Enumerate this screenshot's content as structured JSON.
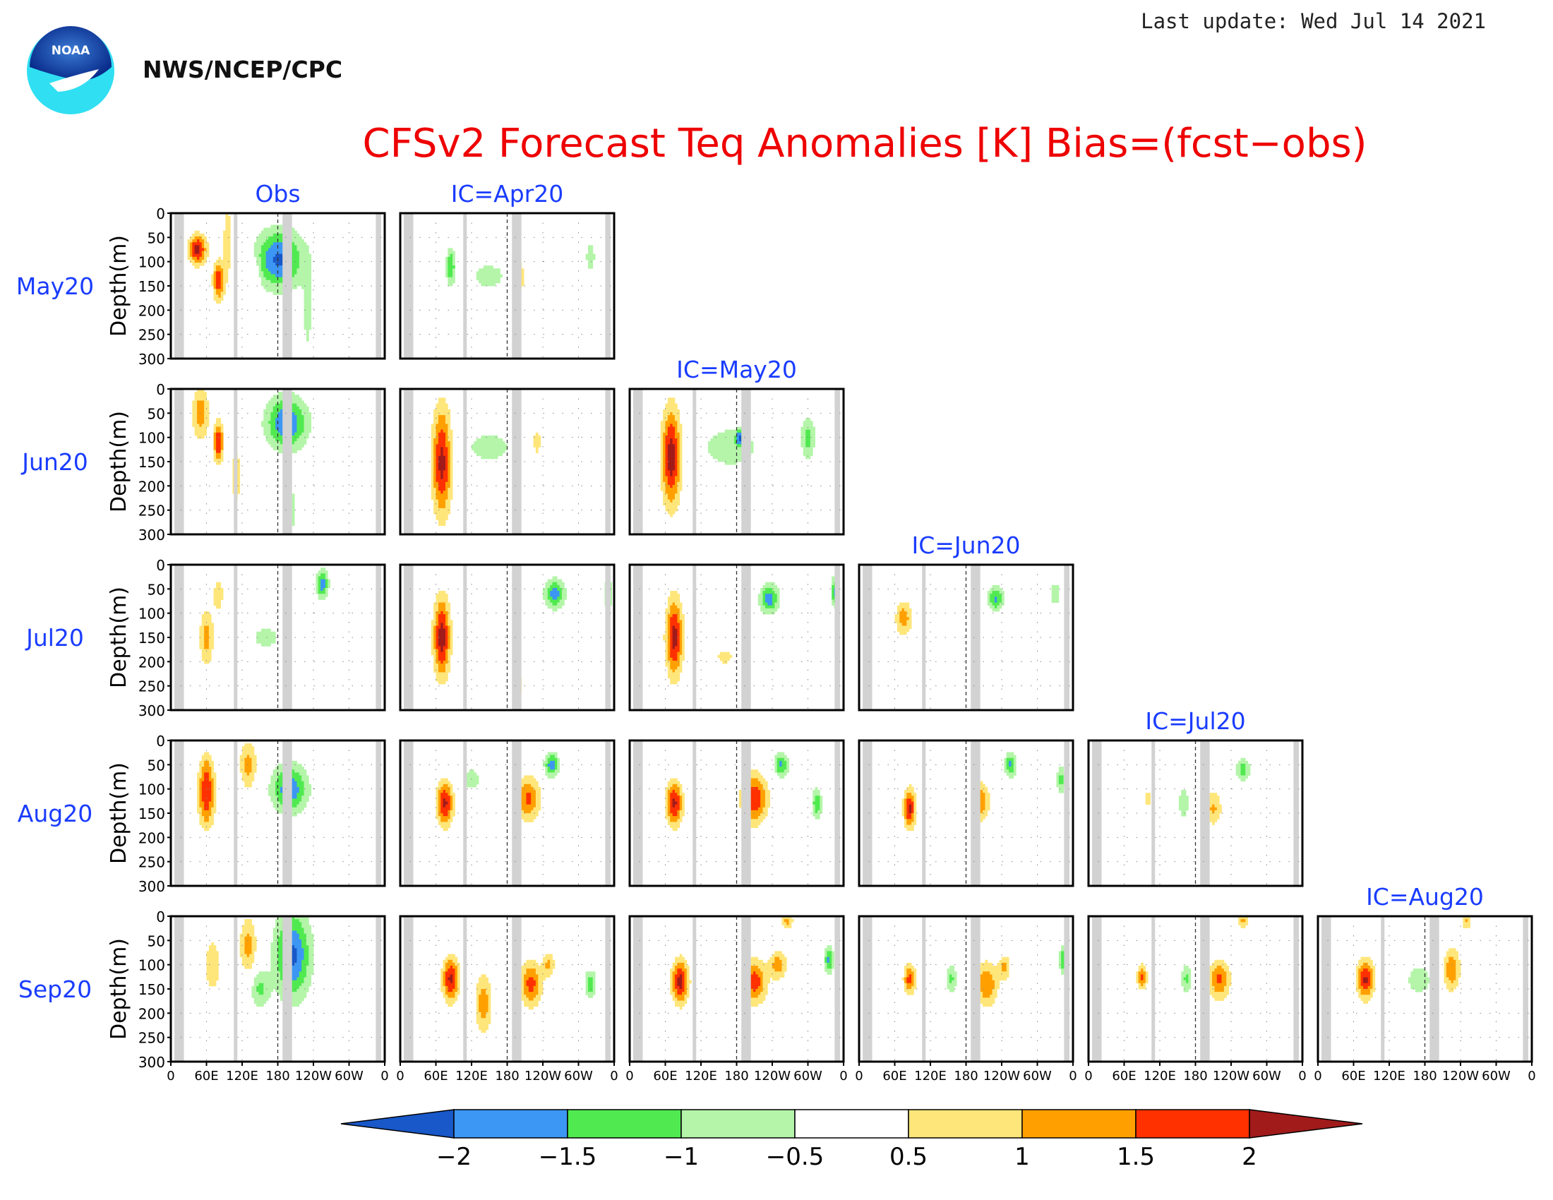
{
  "header": {
    "last_update": "Last update: Wed Jul 14 2021",
    "org": "NWS/NCEP/CPC",
    "logo_text": "NOAA"
  },
  "title": "CFSv2 Forecast Teq Anomalies [K] Bias=(fcst−obs)",
  "colors": {
    "title": "#ee0000",
    "label": "#1a3cff",
    "land": "#d2d2d2"
  },
  "chart_data": {
    "type": "heatmap",
    "y_label": "Depth(m)",
    "y_ticks": [
      "0",
      "50",
      "100",
      "150",
      "200",
      "250",
      "300"
    ],
    "ylim": [
      0,
      300
    ],
    "x_ticks": [
      "0",
      "60E",
      "120E",
      "180",
      "120W",
      "60W",
      "0"
    ],
    "xlim": [
      0,
      360
    ],
    "column_headers": [
      "Obs",
      "IC=Apr20",
      "IC=May20",
      "IC=Jun20",
      "IC=Jul20",
      "IC=Aug20"
    ],
    "row_labels": [
      "May20",
      "Jun20",
      "Jul20",
      "Aug20",
      "Sep20"
    ],
    "colorbar": {
      "tick_labels": [
        "−2",
        "−1.5",
        "−1",
        "−0.5",
        "0.5",
        "1",
        "1.5",
        "2"
      ],
      "bins": [
        "#1858c8",
        "#3c96f4",
        "#50ea50",
        "#b4f5a9",
        "#ffffff",
        "#ffe67a",
        "#ffa000",
        "#ff3100",
        "#a11b1b"
      ]
    },
    "land_bands_lon": [
      [
        6,
        22
      ],
      [
        106,
        112
      ],
      [
        188,
        204
      ],
      [
        345,
        354
      ]
    ],
    "note_levels": "panel values are anomaly bias in K, binned by colorbar",
    "panels": [
      {
        "row": 0,
        "col": 0,
        "blobs": [
          {
            "lon": 45,
            "depth": 75,
            "rlon": 15,
            "rdep": 30,
            "v": 2.2
          },
          {
            "lon": 80,
            "depth": 140,
            "rlon": 9,
            "rdep": 40,
            "v": 1.9
          },
          {
            "lon": 95,
            "depth": 60,
            "rlon": 8,
            "rdep": 90,
            "v": 0.8
          },
          {
            "lon": 182,
            "depth": 95,
            "rlon": 40,
            "rdep": 60,
            "v": -2.1
          },
          {
            "lon": 230,
            "depth": 200,
            "rlon": 8,
            "rdep": 90,
            "v": -0.8
          },
          {
            "lon": 140,
            "depth": 130,
            "rlon": 10,
            "rdep": 40,
            "v": 0.7
          }
        ]
      },
      {
        "row": 0,
        "col": 1,
        "blobs": [
          {
            "lon": 85,
            "depth": 110,
            "rlon": 8,
            "rdep": 40,
            "v": -1.4
          },
          {
            "lon": 150,
            "depth": 130,
            "rlon": 40,
            "rdep": 35,
            "v": -0.7
          },
          {
            "lon": 200,
            "depth": 130,
            "rlon": 18,
            "rdep": 60,
            "v": 0.7
          },
          {
            "lon": 320,
            "depth": 90,
            "rlon": 8,
            "rdep": 35,
            "v": -0.9
          }
        ]
      },
      {
        "row": 1,
        "col": 0,
        "blobs": [
          {
            "lon": 50,
            "depth": 50,
            "rlon": 14,
            "rdep": 55,
            "v": 1.3
          },
          {
            "lon": 80,
            "depth": 110,
            "rlon": 8,
            "rdep": 40,
            "v": 2.1
          },
          {
            "lon": 195,
            "depth": 70,
            "rlon": 35,
            "rdep": 55,
            "v": -2.0
          },
          {
            "lon": 205,
            "depth": 250,
            "rlon": 6,
            "rdep": 50,
            "v": -0.8
          },
          {
            "lon": 110,
            "depth": 180,
            "rlon": 12,
            "rdep": 80,
            "v": 0.7
          }
        ]
      },
      {
        "row": 1,
        "col": 1,
        "blobs": [
          {
            "lon": 70,
            "depth": 150,
            "rlon": 16,
            "rdep": 110,
            "v": 2.2
          },
          {
            "lon": 150,
            "depth": 120,
            "rlon": 50,
            "rdep": 40,
            "v": -0.7
          },
          {
            "lon": 230,
            "depth": 110,
            "rlon": 10,
            "rdep": 40,
            "v": 0.7
          }
        ]
      },
      {
        "row": 1,
        "col": 2,
        "blobs": [
          {
            "lon": 70,
            "depth": 140,
            "rlon": 16,
            "rdep": 100,
            "v": 2.3
          },
          {
            "lon": 170,
            "depth": 120,
            "rlon": 50,
            "rdep": 45,
            "v": -0.9
          },
          {
            "lon": 185,
            "depth": 100,
            "rlon": 6,
            "rdep": 15,
            "v": -1.6
          },
          {
            "lon": 300,
            "depth": 100,
            "rlon": 12,
            "rdep": 45,
            "v": -1.2
          }
        ]
      },
      {
        "row": 2,
        "col": 0,
        "blobs": [
          {
            "lon": 60,
            "depth": 150,
            "rlon": 12,
            "rdep": 60,
            "v": 1.2
          },
          {
            "lon": 80,
            "depth": 60,
            "rlon": 10,
            "rdep": 40,
            "v": 0.8
          },
          {
            "lon": 255,
            "depth": 40,
            "rlon": 10,
            "rdep": 30,
            "v": -1.8
          },
          {
            "lon": 160,
            "depth": 150,
            "rlon": 40,
            "rdep": 40,
            "v": -0.6
          }
        ]
      },
      {
        "row": 2,
        "col": 1,
        "blobs": [
          {
            "lon": 70,
            "depth": 150,
            "rlon": 14,
            "rdep": 80,
            "v": 2.3
          },
          {
            "lon": 260,
            "depth": 60,
            "rlon": 18,
            "rdep": 30,
            "v": -1.7
          },
          {
            "lon": 350,
            "depth": 60,
            "rlon": 8,
            "rdep": 30,
            "v": -1.2
          },
          {
            "lon": 200,
            "depth": 250,
            "rlon": 8,
            "rdep": 30,
            "v": 0.7
          }
        ]
      },
      {
        "row": 2,
        "col": 2,
        "blobs": [
          {
            "lon": 75,
            "depth": 150,
            "rlon": 14,
            "rdep": 80,
            "v": 2.2
          },
          {
            "lon": 235,
            "depth": 70,
            "rlon": 16,
            "rdep": 30,
            "v": -1.8
          },
          {
            "lon": 345,
            "depth": 55,
            "rlon": 6,
            "rdep": 30,
            "v": -1.7
          },
          {
            "lon": 160,
            "depth": 190,
            "rlon": 18,
            "rdep": 20,
            "v": 0.7
          }
        ]
      },
      {
        "row": 2,
        "col": 3,
        "blobs": [
          {
            "lon": 75,
            "depth": 110,
            "rlon": 14,
            "rdep": 35,
            "v": 1.3
          },
          {
            "lon": 230,
            "depth": 70,
            "rlon": 14,
            "rdep": 25,
            "v": -1.6
          },
          {
            "lon": 330,
            "depth": 60,
            "rlon": 10,
            "rdep": 30,
            "v": -0.8
          }
        ]
      },
      {
        "row": 3,
        "col": 0,
        "blobs": [
          {
            "lon": 60,
            "depth": 120,
            "rlon": 14,
            "rdep": 60,
            "v": 1.8
          },
          {
            "lon": 130,
            "depth": 50,
            "rlon": 14,
            "rdep": 50,
            "v": 1.2
          },
          {
            "lon": 200,
            "depth": 100,
            "rlon": 30,
            "rdep": 50,
            "v": -1.9
          },
          {
            "lon": 60,
            "depth": 60,
            "rlon": 12,
            "rdep": 40,
            "v": 0.8
          }
        ]
      },
      {
        "row": 3,
        "col": 1,
        "blobs": [
          {
            "lon": 75,
            "depth": 130,
            "rlon": 14,
            "rdep": 45,
            "v": 2.1
          },
          {
            "lon": 215,
            "depth": 120,
            "rlon": 20,
            "rdep": 45,
            "v": 1.6
          },
          {
            "lon": 255,
            "depth": 50,
            "rlon": 12,
            "rdep": 25,
            "v": -1.8
          },
          {
            "lon": 120,
            "depth": 80,
            "rlon": 20,
            "rdep": 30,
            "v": -0.7
          }
        ]
      },
      {
        "row": 3,
        "col": 2,
        "blobs": [
          {
            "lon": 75,
            "depth": 130,
            "rlon": 14,
            "rdep": 45,
            "v": 2.1
          },
          {
            "lon": 210,
            "depth": 120,
            "rlon": 22,
            "rdep": 50,
            "v": 1.9
          },
          {
            "lon": 255,
            "depth": 50,
            "rlon": 12,
            "rdep": 25,
            "v": -1.6
          },
          {
            "lon": 315,
            "depth": 130,
            "rlon": 8,
            "rdep": 30,
            "v": -1.5
          }
        ]
      },
      {
        "row": 3,
        "col": 3,
        "blobs": [
          {
            "lon": 85,
            "depth": 140,
            "rlon": 10,
            "rdep": 40,
            "v": 2.1
          },
          {
            "lon": 205,
            "depth": 125,
            "rlon": 14,
            "rdep": 40,
            "v": 1.4
          },
          {
            "lon": 255,
            "depth": 50,
            "rlon": 10,
            "rdep": 25,
            "v": -1.6
          },
          {
            "lon": 340,
            "depth": 80,
            "rlon": 8,
            "rdep": 30,
            "v": -1.2
          }
        ]
      },
      {
        "row": 3,
        "col": 4,
        "blobs": [
          {
            "lon": 160,
            "depth": 130,
            "rlon": 10,
            "rdep": 35,
            "v": -0.9
          },
          {
            "lon": 210,
            "depth": 140,
            "rlon": 14,
            "rdep": 35,
            "v": 1.1
          },
          {
            "lon": 260,
            "depth": 60,
            "rlon": 12,
            "rdep": 25,
            "v": -1.2
          },
          {
            "lon": 100,
            "depth": 120,
            "rlon": 10,
            "rdep": 20,
            "v": 0.7
          }
        ]
      },
      {
        "row": 4,
        "col": 0,
        "blobs": [
          {
            "lon": 70,
            "depth": 100,
            "rlon": 14,
            "rdep": 60,
            "v": 0.9
          },
          {
            "lon": 130,
            "depth": 60,
            "rlon": 14,
            "rdep": 60,
            "v": 1.2
          },
          {
            "lon": 205,
            "depth": 80,
            "rlon": 30,
            "rdep": 90,
            "v": -2.1
          },
          {
            "lon": 150,
            "depth": 150,
            "rlon": 16,
            "rdep": 40,
            "v": -1.1
          }
        ]
      },
      {
        "row": 4,
        "col": 1,
        "blobs": [
          {
            "lon": 85,
            "depth": 130,
            "rlon": 14,
            "rdep": 45,
            "v": 2.1
          },
          {
            "lon": 140,
            "depth": 180,
            "rlon": 14,
            "rdep": 60,
            "v": 1.3
          },
          {
            "lon": 220,
            "depth": 140,
            "rlon": 18,
            "rdep": 45,
            "v": 1.7
          },
          {
            "lon": 250,
            "depth": 100,
            "rlon": 10,
            "rdep": 25,
            "v": 1.1
          },
          {
            "lon": 320,
            "depth": 140,
            "rlon": 10,
            "rdep": 30,
            "v": -1.3
          }
        ]
      },
      {
        "row": 4,
        "col": 2,
        "blobs": [
          {
            "lon": 85,
            "depth": 135,
            "rlon": 14,
            "rdep": 45,
            "v": 2.2
          },
          {
            "lon": 210,
            "depth": 135,
            "rlon": 20,
            "rdep": 45,
            "v": 1.8
          },
          {
            "lon": 250,
            "depth": 100,
            "rlon": 14,
            "rdep": 30,
            "v": 1.3
          },
          {
            "lon": 265,
            "depth": 10,
            "rlon": 10,
            "rdep": 15,
            "v": 1.2
          },
          {
            "lon": 335,
            "depth": 90,
            "rlon": 8,
            "rdep": 30,
            "v": -1.6
          }
        ]
      },
      {
        "row": 4,
        "col": 3,
        "blobs": [
          {
            "lon": 85,
            "depth": 130,
            "rlon": 10,
            "rdep": 30,
            "v": 1.7
          },
          {
            "lon": 215,
            "depth": 140,
            "rlon": 18,
            "rdep": 45,
            "v": 1.5
          },
          {
            "lon": 245,
            "depth": 105,
            "rlon": 10,
            "rdep": 25,
            "v": 1.1
          },
          {
            "lon": 155,
            "depth": 130,
            "rlon": 10,
            "rdep": 30,
            "v": -1.1
          },
          {
            "lon": 345,
            "depth": 90,
            "rlon": 8,
            "rdep": 30,
            "v": -1.5
          }
        ]
      },
      {
        "row": 4,
        "col": 4,
        "blobs": [
          {
            "lon": 90,
            "depth": 125,
            "rlon": 8,
            "rdep": 25,
            "v": 1.6
          },
          {
            "lon": 165,
            "depth": 130,
            "rlon": 10,
            "rdep": 30,
            "v": -1.1
          },
          {
            "lon": 220,
            "depth": 130,
            "rlon": 18,
            "rdep": 40,
            "v": 1.6
          },
          {
            "lon": 260,
            "depth": 10,
            "rlon": 10,
            "rdep": 15,
            "v": 1.1
          }
        ]
      },
      {
        "row": 4,
        "col": 5,
        "blobs": [
          {
            "lon": 80,
            "depth": 130,
            "rlon": 14,
            "rdep": 40,
            "v": 2.1
          },
          {
            "lon": 170,
            "depth": 130,
            "rlon": 20,
            "rdep": 30,
            "v": -1.0
          },
          {
            "lon": 225,
            "depth": 110,
            "rlon": 14,
            "rdep": 45,
            "v": 1.4
          },
          {
            "lon": 250,
            "depth": 10,
            "rlon": 8,
            "rdep": 15,
            "v": 1.1
          }
        ]
      }
    ]
  }
}
